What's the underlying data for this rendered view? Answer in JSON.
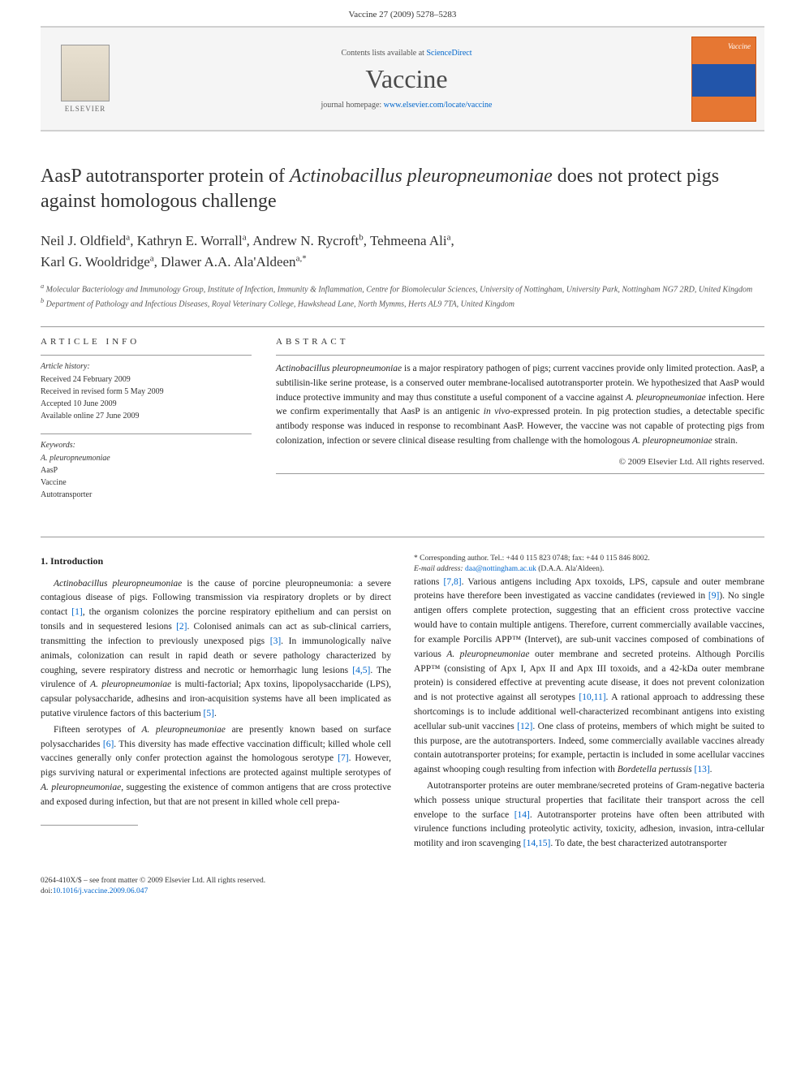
{
  "header": {
    "citation": "Vaccine 27 (2009) 5278–5283"
  },
  "banner": {
    "contents_prefix": "Contents lists available at ",
    "contents_link": "ScienceDirect",
    "journal_name": "Vaccine",
    "homepage_prefix": "journal homepage: ",
    "homepage_link": "www.elsevier.com/locate/vaccine",
    "elsevier_label": "ELSEVIER",
    "cover_title": "Vaccine"
  },
  "article": {
    "title_pre": "AasP autotransporter protein of ",
    "title_species": "Actinobacillus pleuropneumoniae",
    "title_post": " does not protect pigs against homologous challenge",
    "authors_html": "Neil J. Oldfield|a|, Kathryn E. Worrall|a|, Andrew N. Rycroft|b|, Tehmeena Ali|a|, Karl G. Wooldridge|a|, Dlawer A.A. Ala'Aldeen|a,*",
    "authors": [
      {
        "name": "Neil J. Oldfield",
        "sup": "a"
      },
      {
        "name": "Kathryn E. Worrall",
        "sup": "a"
      },
      {
        "name": "Andrew N. Rycroft",
        "sup": "b"
      },
      {
        "name": "Tehmeena Ali",
        "sup": "a"
      },
      {
        "name": "Karl G. Wooldridge",
        "sup": "a"
      },
      {
        "name": "Dlawer A.A. Ala'Aldeen",
        "sup": "a,*"
      }
    ],
    "affiliations": {
      "a": "Molecular Bacteriology and Immunology Group, Institute of Infection, Immunity & Inflammation, Centre for Biomolecular Sciences, University of Nottingham, University Park, Nottingham NG7 2RD, United Kingdom",
      "b": "Department of Pathology and Infectious Diseases, Royal Veterinary College, Hawkshead Lane, North Mymms, Herts AL9 7TA, United Kingdom"
    }
  },
  "info": {
    "heading": "ARTICLE INFO",
    "history_label": "Article history:",
    "history": [
      "Received 24 February 2009",
      "Received in revised form 5 May 2009",
      "Accepted 10 June 2009",
      "Available online 27 June 2009"
    ],
    "keywords_label": "Keywords:",
    "keywords": [
      "A. pleuropneumoniae",
      "AasP",
      "Vaccine",
      "Autotransporter"
    ]
  },
  "abstract": {
    "heading": "ABSTRACT",
    "text": "Actinobacillus pleuropneumoniae is a major respiratory pathogen of pigs; current vaccines provide only limited protection. AasP, a subtilisin-like serine protease, is a conserved outer membrane-localised autotransporter protein. We hypothesized that AasP would induce protective immunity and may thus constitute a useful component of a vaccine against A. pleuropneumoniae infection. Here we confirm experimentally that AasP is an antigenic in vivo-expressed protein. In pig protection studies, a detectable specific antibody response was induced in response to recombinant AasP. However, the vaccine was not capable of protecting pigs from colonization, infection or severe clinical disease resulting from challenge with the homologous A. pleuropneumoniae strain.",
    "copyright": "© 2009 Elsevier Ltd. All rights reserved."
  },
  "body": {
    "section1_heading": "1. Introduction",
    "para1": "Actinobacillus pleuropneumoniae is the cause of porcine pleuropneumonia: a severe contagious disease of pigs. Following transmission via respiratory droplets or by direct contact [1], the organism colonizes the porcine respiratory epithelium and can persist on tonsils and in sequestered lesions [2]. Colonised animals can act as sub-clinical carriers, transmitting the infection to previously unexposed pigs [3]. In immunologically naïve animals, colonization can result in rapid death or severe pathology characterized by coughing, severe respiratory distress and necrotic or hemorrhagic lung lesions [4,5]. The virulence of A. pleuropneumoniae is multi-factorial; Apx toxins, lipopolysaccharide (LPS), capsular polysaccharide, adhesins and iron-acquisition systems have all been implicated as putative virulence factors of this bacterium [5].",
    "para2": "Fifteen serotypes of A. pleuropneumoniae are presently known based on surface polysaccharides [6]. This diversity has made effective vaccination difficult; killed whole cell vaccines generally only confer protection against the homologous serotype [7]. However, pigs surviving natural or experimental infections are protected against multiple serotypes of A. pleuropneumoniae, suggesting the existence of common antigens that are cross protective and exposed during infection, but that are not present in killed whole cell prepa-",
    "para3": "rations [7,8]. Various antigens including Apx toxoids, LPS, capsule and outer membrane proteins have therefore been investigated as vaccine candidates (reviewed in [9]). No single antigen offers complete protection, suggesting that an efficient cross protective vaccine would have to contain multiple antigens. Therefore, current commercially available vaccines, for example Porcilis APP™ (Intervet), are sub-unit vaccines composed of combinations of various A. pleuropneumoniae outer membrane and secreted proteins. Although Porcilis APP™ (consisting of Apx I, Apx II and Apx III toxoids, and a 42-kDa outer membrane protein) is considered effective at preventing acute disease, it does not prevent colonization and is not protective against all serotypes [10,11]. A rational approach to addressing these shortcomings is to include additional well-characterized recombinant antigens into existing acellular sub-unit vaccines [12]. One class of proteins, members of which might be suited to this purpose, are the autotransporters. Indeed, some commercially available vaccines already contain autotransporter proteins; for example, pertactin is included in some acellular vaccines against whooping cough resulting from infection with Bordetella pertussis [13].",
    "para4": "Autotransporter proteins are outer membrane/secreted proteins of Gram-negative bacteria which possess unique structural properties that facilitate their transport across the cell envelope to the surface [14]. Autotransporter proteins have often been attributed with virulence functions including proteolytic activity, toxicity, adhesion, invasion, intra-cellular motility and iron scavenging [14,15]. To date, the best characterized autotransporter"
  },
  "footnote": {
    "corr_label": "* Corresponding author. Tel.: +44 0 115 823 0748; fax: +44 0 115 846 8002.",
    "email_label": "E-mail address: ",
    "email": "daa@nottingham.ac.uk",
    "email_post": " (D.A.A. Ala'Aldeen)."
  },
  "footer": {
    "issn_line": "0264-410X/$ – see front matter © 2009 Elsevier Ltd. All rights reserved.",
    "doi_prefix": "doi:",
    "doi": "10.1016/j.vaccine.2009.06.047"
  },
  "colors": {
    "link": "#0066cc",
    "cover_bg": "#e67733",
    "cover_stripe": "#2255aa",
    "banner_bg": "#f5f5f5",
    "rule": "#999999",
    "text": "#222222"
  }
}
